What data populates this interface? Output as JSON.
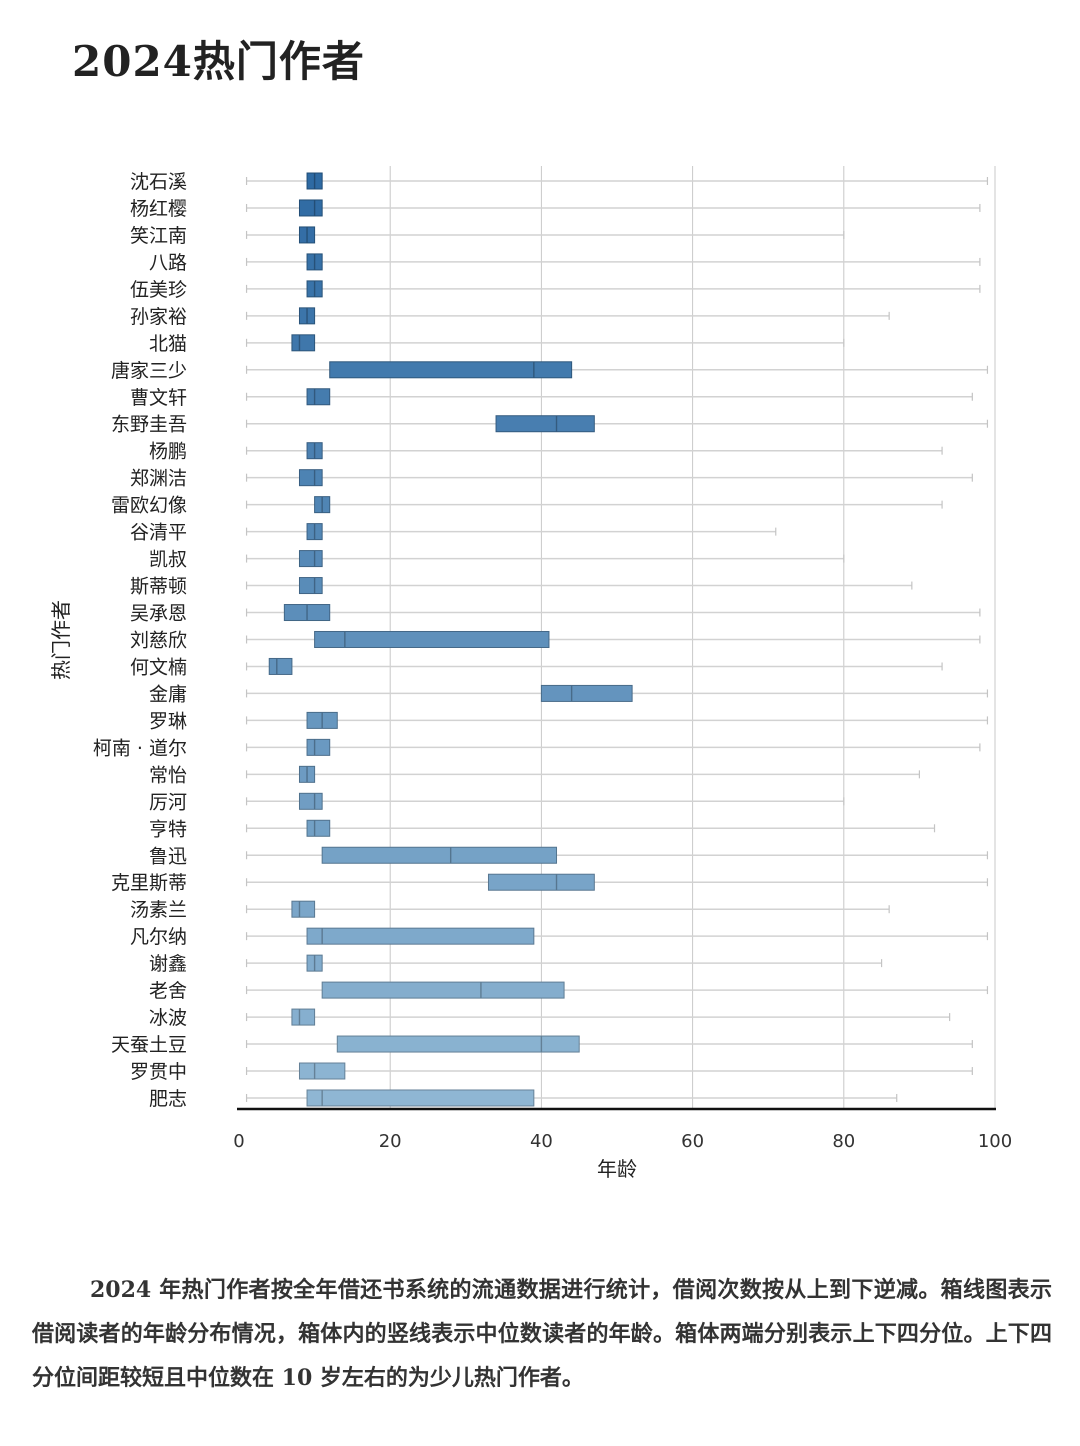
{
  "page": {
    "title": "2024热门作者",
    "description": "2024 年热门作者按全年借还书系统的流通数据进行统计，借阅次数按从上到下逆减。箱线图表示借阅读者的年龄分布情况，箱体内的竖线表示中位数读者的年龄。箱体两端分别表示上下四分位。上下四分位间距较短且中位数在 10 岁左右的为少儿热门作者。"
  },
  "chart_data": {
    "type": "box",
    "orientation": "horizontal",
    "xlabel": "年龄",
    "ylabel": "热门作者",
    "xlim": [
      0,
      100
    ],
    "xticks": [
      0,
      20,
      40,
      60,
      80,
      100
    ],
    "grid": "vertical",
    "color_top": "#2e6aa3",
    "color_bottom": "#8fb6d3",
    "categories": [
      "沈石溪",
      "杨红樱",
      "笑江南",
      "八路",
      "伍美珍",
      "孙家裕",
      "北猫",
      "唐家三少",
      "曹文轩",
      "东野圭吾",
      "杨鹏",
      "郑渊洁",
      "雷欧幻像",
      "谷清平",
      "凯叔",
      "斯蒂顿",
      "吴承恩",
      "刘慈欣",
      "何文楠",
      "金庸",
      "罗琳",
      "柯南 · 道尔",
      "常怡",
      "厉河",
      "亨特",
      "鲁迅",
      "克里斯蒂",
      "汤素兰",
      "凡尔纳",
      "谢鑫",
      "老舍",
      "冰波",
      "天蚕土豆",
      "罗贯中",
      "肥志"
    ],
    "boxes": [
      {
        "min": 1,
        "q1": 9,
        "median": 10,
        "q3": 11,
        "max": 99
      },
      {
        "min": 1,
        "q1": 8,
        "median": 10,
        "q3": 11,
        "max": 98
      },
      {
        "min": 1,
        "q1": 8,
        "median": 9,
        "q3": 10,
        "max": 80
      },
      {
        "min": 1,
        "q1": 9,
        "median": 10,
        "q3": 11,
        "max": 98
      },
      {
        "min": 1,
        "q1": 9,
        "median": 10,
        "q3": 11,
        "max": 98
      },
      {
        "min": 1,
        "q1": 8,
        "median": 9,
        "q3": 10,
        "max": 86
      },
      {
        "min": 1,
        "q1": 7,
        "median": 8,
        "q3": 10,
        "max": 80
      },
      {
        "min": 1,
        "q1": 12,
        "median": 39,
        "q3": 44,
        "max": 99
      },
      {
        "min": 1,
        "q1": 9,
        "median": 10,
        "q3": 12,
        "max": 97
      },
      {
        "min": 1,
        "q1": 34,
        "median": 42,
        "q3": 47,
        "max": 99
      },
      {
        "min": 1,
        "q1": 9,
        "median": 10,
        "q3": 11,
        "max": 93
      },
      {
        "min": 1,
        "q1": 8,
        "median": 10,
        "q3": 11,
        "max": 97
      },
      {
        "min": 1,
        "q1": 10,
        "median": 11,
        "q3": 12,
        "max": 93
      },
      {
        "min": 1,
        "q1": 9,
        "median": 10,
        "q3": 11,
        "max": 71
      },
      {
        "min": 1,
        "q1": 8,
        "median": 10,
        "q3": 11,
        "max": 80
      },
      {
        "min": 1,
        "q1": 8,
        "median": 10,
        "q3": 11,
        "max": 89
      },
      {
        "min": 1,
        "q1": 6,
        "median": 9,
        "q3": 12,
        "max": 98
      },
      {
        "min": 1,
        "q1": 10,
        "median": 14,
        "q3": 41,
        "max": 98
      },
      {
        "min": 1,
        "q1": 4,
        "median": 5,
        "q3": 7,
        "max": 93
      },
      {
        "min": 1,
        "q1": 40,
        "median": 44,
        "q3": 52,
        "max": 99
      },
      {
        "min": 1,
        "q1": 9,
        "median": 11,
        "q3": 13,
        "max": 99
      },
      {
        "min": 1,
        "q1": 9,
        "median": 10,
        "q3": 12,
        "max": 98
      },
      {
        "min": 1,
        "q1": 8,
        "median": 9,
        "q3": 10,
        "max": 90
      },
      {
        "min": 1,
        "q1": 8,
        "median": 10,
        "q3": 11,
        "max": 80
      },
      {
        "min": 1,
        "q1": 9,
        "median": 10,
        "q3": 12,
        "max": 92
      },
      {
        "min": 1,
        "q1": 11,
        "median": 28,
        "q3": 42,
        "max": 99
      },
      {
        "min": 1,
        "q1": 33,
        "median": 42,
        "q3": 47,
        "max": 99
      },
      {
        "min": 1,
        "q1": 7,
        "median": 8,
        "q3": 10,
        "max": 86
      },
      {
        "min": 1,
        "q1": 9,
        "median": 11,
        "q3": 39,
        "max": 99
      },
      {
        "min": 1,
        "q1": 9,
        "median": 10,
        "q3": 11,
        "max": 85
      },
      {
        "min": 1,
        "q1": 11,
        "median": 32,
        "q3": 43,
        "max": 99
      },
      {
        "min": 1,
        "q1": 7,
        "median": 8,
        "q3": 10,
        "max": 94
      },
      {
        "min": 1,
        "q1": 13,
        "median": 40,
        "q3": 45,
        "max": 97
      },
      {
        "min": 1,
        "q1": 8,
        "median": 10,
        "q3": 14,
        "max": 97
      },
      {
        "min": 1,
        "q1": 9,
        "median": 11,
        "q3": 39,
        "max": 87
      }
    ]
  }
}
